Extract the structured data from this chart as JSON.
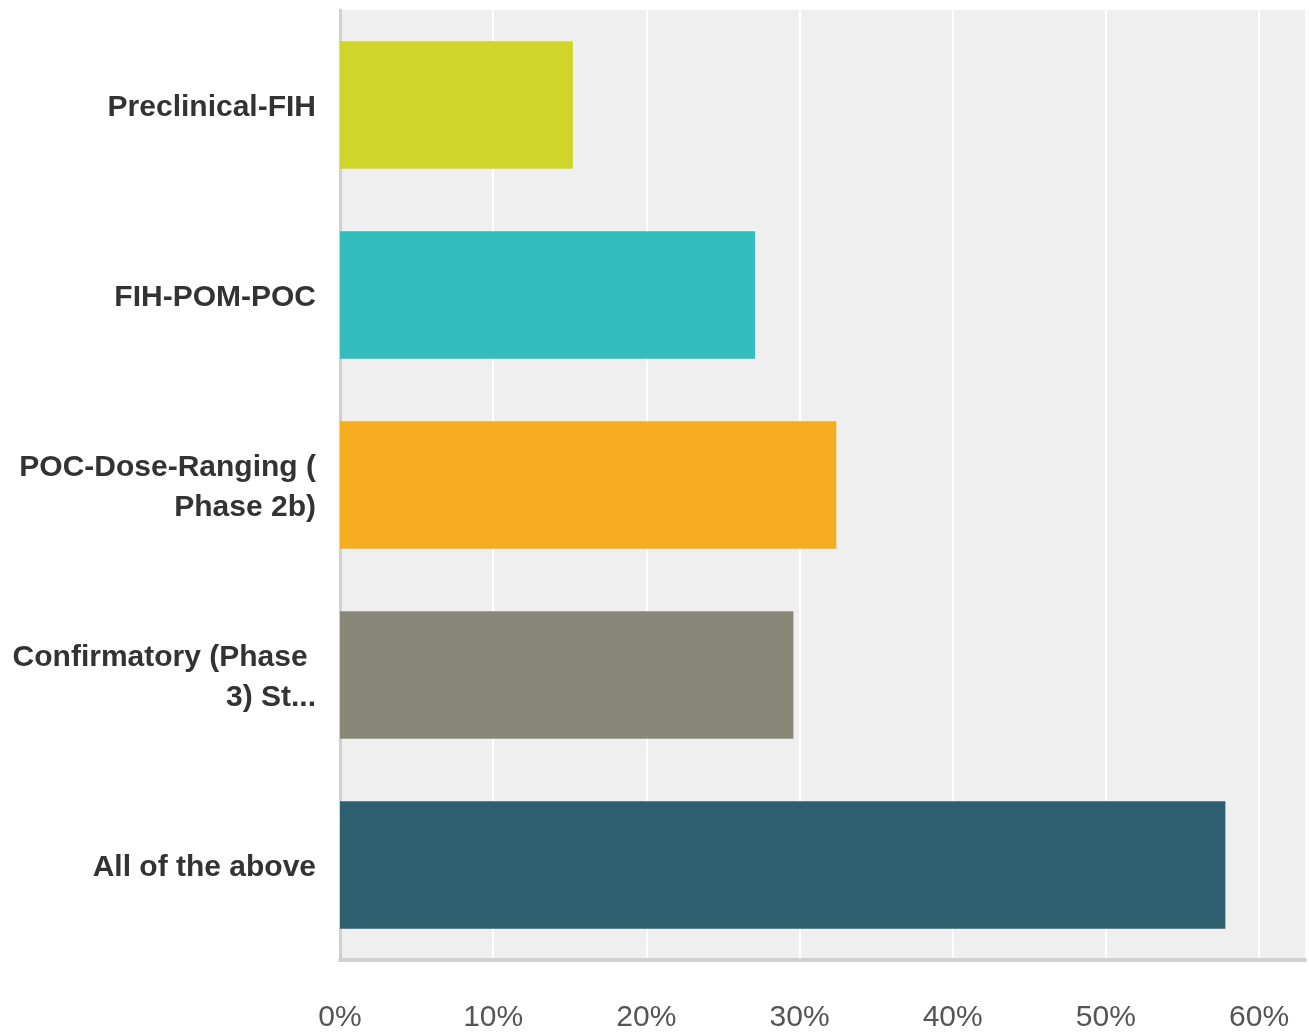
{
  "chart_data": {
    "type": "bar",
    "orientation": "horizontal",
    "categories": [
      "Preclinical-FIH",
      "FIH-POM-POC",
      "POC-Dose-Ranging (Phase 2b)",
      "Confirmatory (Phase 3) St...",
      "All of the above"
    ],
    "values": [
      15.2,
      27.1,
      32.4,
      29.6,
      57.8
    ],
    "colors": [
      "#cfd52a",
      "#33bdbf",
      "#f5ad1f",
      "#888878",
      "#2e5f6e"
    ],
    "xlim": [
      0,
      63
    ],
    "xticks": [
      {
        "value": 0,
        "label": "0%"
      },
      {
        "value": 10,
        "label": "10%"
      },
      {
        "value": 20,
        "label": "20%"
      },
      {
        "value": 30,
        "label": "30%"
      },
      {
        "value": 40,
        "label": "40%"
      },
      {
        "value": 50,
        "label": "50%"
      },
      {
        "value": 60,
        "label": "60%"
      }
    ],
    "grid": "x"
  }
}
